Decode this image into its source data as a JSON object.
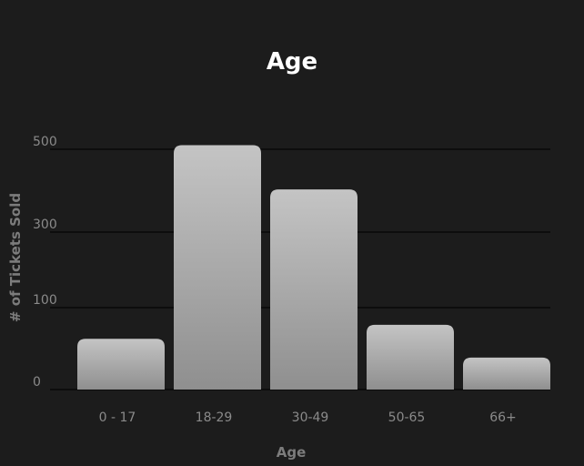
{
  "chart_data": {
    "type": "bar",
    "title": "Age",
    "xlabel": "Age",
    "ylabel": "# of Tickets Sold",
    "categories": [
      "0 - 17",
      "18-29",
      "30-49",
      "50-65",
      "66+"
    ],
    "values": [
      62,
      510,
      403,
      79,
      39
    ],
    "y_ticks": [
      {
        "value": 0,
        "label": "0"
      },
      {
        "value": 100,
        "label": "100"
      },
      {
        "value": 300,
        "label": "300"
      },
      {
        "value": 500,
        "label": "500"
      }
    ],
    "grid": true,
    "legend": "none",
    "colors": {
      "background": "#1c1c1c",
      "bar_top": "#c4c4c4",
      "bar_bottom": "#8f8f8f",
      "grid": "#0d0d0d",
      "title": "#ffffff",
      "axis_label": "#7c7c7c",
      "tick_label": "#8a8a8a"
    }
  }
}
